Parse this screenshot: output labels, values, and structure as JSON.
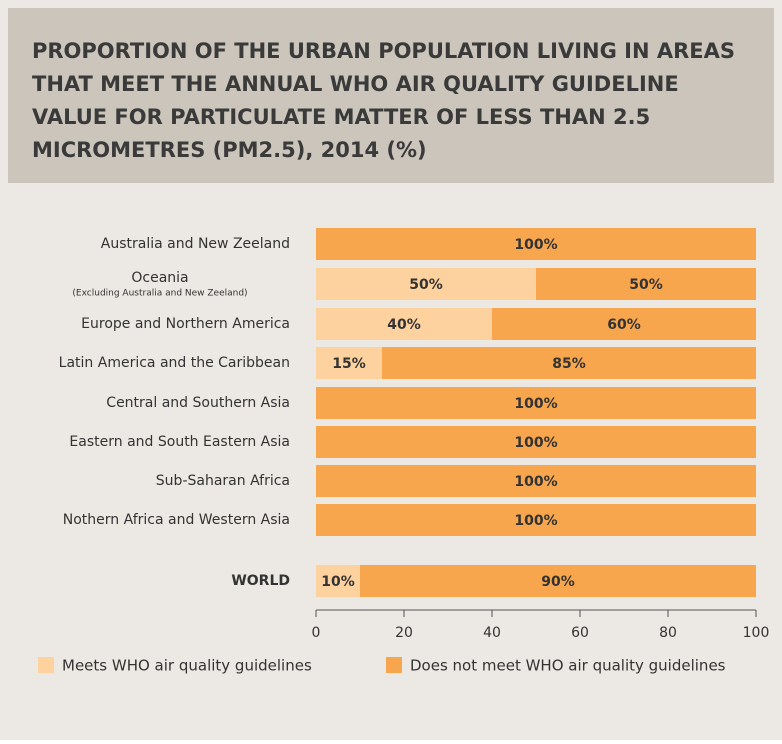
{
  "chart_data": {
    "type": "stacked_bar_horizontal",
    "title": "PROPORTION OF THE URBAN POPULATION LIVING IN AREAS THAT MEET THE ANNUAL WHO AIR QUALITY GUIDELINE VALUE FOR PARTICULATE MATTER OF LESS THAN 2.5 MICROMETRES (PM2.5), 2014 (%)",
    "categories": [
      "Australia and New Zeeland",
      "Oceania",
      "Europe and Northern America",
      "Latin America and the Caribbean",
      "Central and Southern Asia",
      "Eastern and South Eastern Asia",
      "Sub-Saharan Africa",
      "Nothern Africa and Western Asia",
      "WORLD"
    ],
    "category_notes": [
      null,
      "(Excluding Australia and New Zeeland)",
      null,
      null,
      null,
      null,
      null,
      null,
      null
    ],
    "series": [
      {
        "name": "Meets WHO air quality guidelines",
        "color": "#fdd29e",
        "values": [
          0,
          50,
          40,
          15,
          0,
          0,
          0,
          0,
          10
        ],
        "value_labels": [
          null,
          "50%",
          "40%",
          "15%",
          null,
          null,
          null,
          null,
          "10%"
        ]
      },
      {
        "name": "Does not meet WHO air quality guidelines",
        "color": "#f7a64d",
        "values": [
          100,
          50,
          60,
          85,
          100,
          100,
          100,
          100,
          90
        ],
        "value_labels": [
          "100%",
          "50%",
          "60%",
          "85%",
          "100%",
          "100%",
          "100%",
          "100%",
          "90%"
        ]
      }
    ],
    "xlim": [
      0,
      100
    ],
    "xticks": [
      0,
      20,
      40,
      60,
      80,
      100
    ],
    "legend": "bottom"
  }
}
